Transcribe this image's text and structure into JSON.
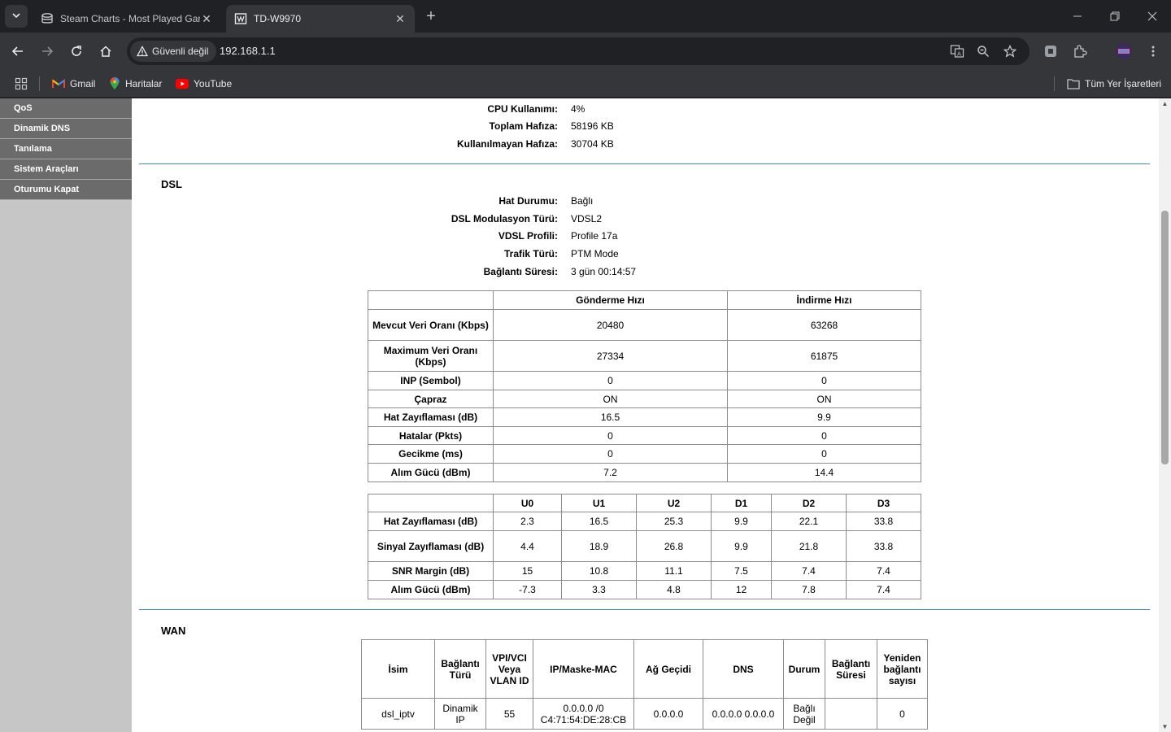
{
  "browser": {
    "tabs": [
      {
        "title": "Steam Charts - Most Played Games",
        "active": false
      },
      {
        "title": "TD-W9970",
        "active": true
      }
    ],
    "security_chip": "Güvenli değil",
    "url": "192.168.1.1",
    "bookmarks": [
      "Gmail",
      "Haritalar",
      "YouTube"
    ],
    "bookmarks_folder": "Tüm Yer İşaretleri"
  },
  "sidebar": {
    "items": [
      "QoS",
      "Dinamik DNS",
      "Tanılama",
      "Sistem Araçları",
      "Oturumu Kapat"
    ]
  },
  "system": {
    "rows": [
      {
        "label": "CPU Kullanımı:",
        "value": "4%"
      },
      {
        "label": "Toplam Hafıza:",
        "value": "58196 KB"
      },
      {
        "label": "Kullanılmayan Hafıza:",
        "value": "30704 KB"
      }
    ]
  },
  "dsl": {
    "title": "DSL",
    "rows": [
      {
        "label": "Hat Durumu:",
        "value": "Bağlı"
      },
      {
        "label": "DSL Modulasyon Türü:",
        "value": "VDSL2"
      },
      {
        "label": "VDSL Profili:",
        "value": "Profile 17a"
      },
      {
        "label": "Trafik Türü:",
        "value": "PTM Mode"
      },
      {
        "label": "Bağlantı Süresi:",
        "value": "3 gün 00:14:57"
      }
    ],
    "rate_table": {
      "headers": [
        "",
        "Gönderme Hızı",
        "İndirme Hızı"
      ],
      "rows": [
        [
          "Mevcut Veri Oranı (Kbps)",
          "20480",
          "63268"
        ],
        [
          "Maximum Veri Oranı (Kbps)",
          "27334",
          "61875"
        ],
        [
          "INP (Sembol)",
          "0",
          "0"
        ],
        [
          "Çapraz",
          "ON",
          "ON"
        ],
        [
          "Hat Zayıflaması (dB)",
          "16.5",
          "9.9"
        ],
        [
          "Hatalar (Pkts)",
          "0",
          "0"
        ],
        [
          "Gecikme (ms)",
          "0",
          "0"
        ],
        [
          "Alım Gücü (dBm)",
          "7.2",
          "14.4"
        ]
      ]
    },
    "band_table": {
      "headers": [
        "",
        "U0",
        "U1",
        "U2",
        "D1",
        "D2",
        "D3"
      ],
      "rows": [
        [
          "Hat Zayıflaması (dB)",
          "2.3",
          "16.5",
          "25.3",
          "9.9",
          "22.1",
          "33.8"
        ],
        [
          "Sinyal Zayıflaması (dB)",
          "4.4",
          "18.9",
          "26.8",
          "9.9",
          "21.8",
          "33.8"
        ],
        [
          "SNR Margin (dB)",
          "15",
          "10.8",
          "11.1",
          "7.5",
          "7.4",
          "7.4"
        ],
        [
          "Alım Gücü (dBm)",
          "-7.3",
          "3.3",
          "4.8",
          "12",
          "7.8",
          "7.4"
        ]
      ]
    }
  },
  "wan": {
    "title": "WAN",
    "headers": [
      "İsim",
      "Bağlantı Türü",
      "VPI/VCI Veya VLAN ID",
      "IP/Maske-MAC",
      "Ağ Geçidi",
      "DNS",
      "Durum",
      "Bağlantı Süresi",
      "Yeniden bağlantı sayısı"
    ],
    "rows": [
      [
        "dsl_iptv",
        "Dinamik IP",
        "55",
        "0.0.0.0 /0 C4:71:54:DE:28:CB",
        "0.0.0.0",
        "0.0.0.0 0.0.0.0",
        "Bağlı Değil",
        "",
        "0"
      ]
    ]
  }
}
